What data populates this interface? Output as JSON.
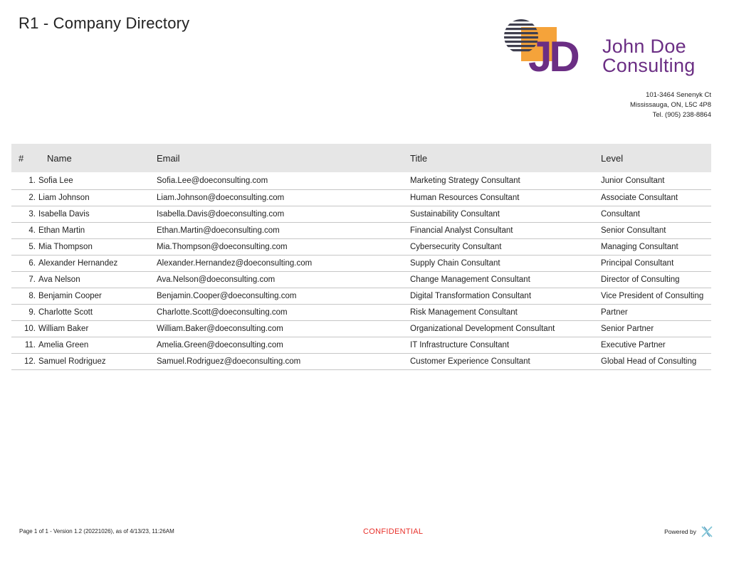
{
  "report": {
    "title": "R1 - Company Directory"
  },
  "brand": {
    "logo_letters": "JD",
    "company_line1": "John Doe",
    "company_line2": "Consulting",
    "colors": {
      "purple": "#6b2e84",
      "orange": "#f5a33a",
      "stripes": "#3f3f4f"
    }
  },
  "address": {
    "line1": "101-3464 Senenyk Ct",
    "line2": "Mississauga, ON, L5C 4P8",
    "line3": "Tel. (905) 238-8864"
  },
  "table": {
    "headers": {
      "num": "#",
      "name": "Name",
      "email": "Email",
      "title": "Title",
      "level": "Level"
    },
    "rows": [
      {
        "num": "1.",
        "name": "Sofia Lee",
        "email": "Sofia.Lee@doeconsulting.com",
        "title": "Marketing Strategy Consultant",
        "level": "Junior Consultant"
      },
      {
        "num": "2.",
        "name": "Liam Johnson",
        "email": "Liam.Johnson@doeconsulting.com",
        "title": "Human Resources Consultant",
        "level": "Associate Consultant"
      },
      {
        "num": "3.",
        "name": "Isabella Davis",
        "email": "Isabella.Davis@doeconsulting.com",
        "title": "Sustainability Consultant",
        "level": "Consultant"
      },
      {
        "num": "4.",
        "name": "Ethan Martin",
        "email": "Ethan.Martin@doeconsulting.com",
        "title": "Financial Analyst Consultant",
        "level": "Senior Consultant"
      },
      {
        "num": "5.",
        "name": "Mia Thompson",
        "email": "Mia.Thompson@doeconsulting.com",
        "title": "Cybersecurity Consultant",
        "level": "Managing Consultant"
      },
      {
        "num": "6.",
        "name": "Alexander Hernandez",
        "email": "Alexander.Hernandez@doeconsulting.com",
        "title": "Supply Chain Consultant",
        "level": "Principal Consultant"
      },
      {
        "num": "7.",
        "name": "Ava Nelson",
        "email": "Ava.Nelson@doeconsulting.com",
        "title": "Change Management Consultant",
        "level": "Director of Consulting"
      },
      {
        "num": "8.",
        "name": "Benjamin Cooper",
        "email": "Benjamin.Cooper@doeconsulting.com",
        "title": "Digital Transformation Consultant",
        "level": "Vice President of Consulting"
      },
      {
        "num": "9.",
        "name": "Charlotte Scott",
        "email": "Charlotte.Scott@doeconsulting.com",
        "title": "Risk Management Consultant",
        "level": "Partner"
      },
      {
        "num": "10.",
        "name": "William Baker",
        "email": "William.Baker@doeconsulting.com",
        "title": "Organizational Development Consultant",
        "level": "Senior Partner"
      },
      {
        "num": "11.",
        "name": "Amelia Green",
        "email": "Amelia.Green@doeconsulting.com",
        "title": "IT Infrastructure Consultant",
        "level": "Executive Partner"
      },
      {
        "num": "12.",
        "name": "Samuel Rodriguez",
        "email": "Samuel.Rodriguez@doeconsulting.com",
        "title": "Customer Experience Consultant",
        "level": "Global Head of Consulting"
      }
    ]
  },
  "footer": {
    "page_info": "Page 1 of 1 - Version 1.2 (20221026), as of 4/13/23, 11:26AM",
    "confidential": "CONFIDENTIAL",
    "confidential_color": "#e8312b",
    "powered_by": "Powered by",
    "powered_by_icon": "x-logo-icon"
  }
}
